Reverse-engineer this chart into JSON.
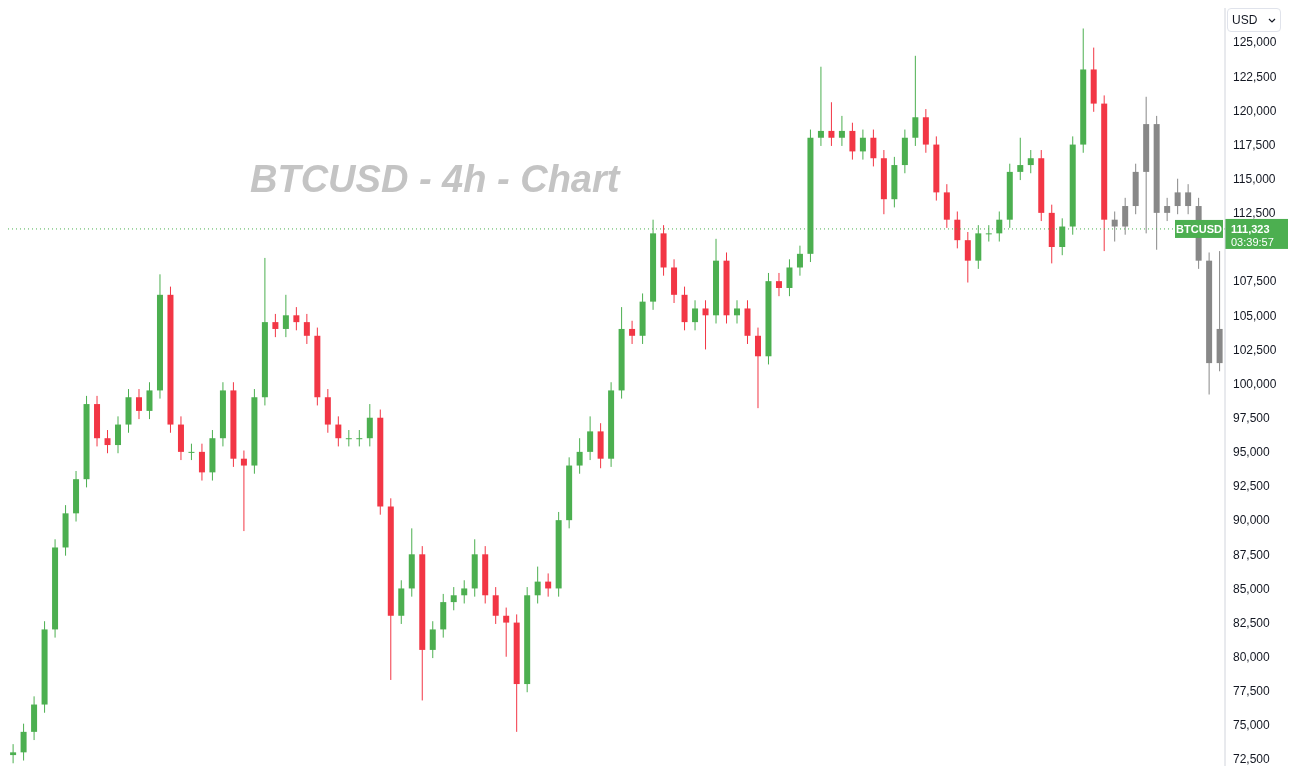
{
  "chart_data": {
    "type": "candlestick",
    "title": "BTCUSD - 4h - Chart",
    "ylabel": "USD",
    "categories": [
      null,
      null,
      null,
      null,
      null,
      null,
      null,
      null,
      null,
      null,
      null,
      null,
      null,
      null,
      null,
      null,
      null,
      null,
      null,
      null,
      null,
      null,
      null,
      null,
      null,
      null,
      null,
      null,
      null,
      null,
      null,
      null,
      null,
      null,
      null,
      null,
      null,
      null,
      null,
      null,
      null,
      null,
      null,
      null,
      null,
      null,
      null,
      null,
      null,
      null,
      null,
      null,
      null,
      null,
      null,
      null,
      null,
      null,
      null,
      null,
      null,
      null,
      null,
      null,
      null,
      null,
      null,
      null,
      null,
      null,
      null,
      null,
      null,
      null,
      null,
      null,
      null,
      null,
      null,
      null,
      null,
      null,
      null,
      null,
      null,
      null,
      null,
      null,
      null,
      null,
      null,
      null,
      null,
      null,
      null,
      null,
      null,
      null,
      null,
      null,
      null,
      null,
      null,
      null,
      null,
      null,
      null,
      null,
      null,
      null,
      null,
      null,
      null,
      null,
      null,
      null
    ],
    "ohlc": [
      [
        72800,
        73600,
        72200,
        73000
      ],
      [
        73000,
        75100,
        72400,
        74500
      ],
      [
        74500,
        77100,
        73900,
        76500
      ],
      [
        76500,
        82600,
        75900,
        82000
      ],
      [
        82000,
        88600,
        81400,
        88000
      ],
      [
        88000,
        91100,
        87400,
        90500
      ],
      [
        90500,
        93600,
        89900,
        93000
      ],
      [
        93000,
        99100,
        92400,
        98500
      ],
      [
        98500,
        99100,
        95400,
        96000
      ],
      [
        96000,
        96600,
        94900,
        95500
      ],
      [
        95500,
        97600,
        94900,
        97000
      ],
      [
        97000,
        99600,
        96400,
        99000
      ],
      [
        99000,
        99600,
        97400,
        98000
      ],
      [
        98000,
        100100,
        97400,
        99500
      ],
      [
        99500,
        108000,
        98900,
        106500
      ],
      [
        106500,
        107100,
        96400,
        97000
      ],
      [
        97000,
        97600,
        94400,
        95000
      ],
      [
        95000,
        95600,
        94400,
        95000
      ],
      [
        95000,
        95600,
        92900,
        93500
      ],
      [
        93500,
        96600,
        92900,
        96000
      ],
      [
        96000,
        100100,
        95400,
        99500
      ],
      [
        99500,
        100100,
        93900,
        94500
      ],
      [
        94500,
        95100,
        89200,
        94000
      ],
      [
        94000,
        99600,
        93400,
        99000
      ],
      [
        99000,
        109200,
        98400,
        104500
      ],
      [
        104500,
        105100,
        103400,
        104000
      ],
      [
        104000,
        106500,
        103400,
        105000
      ],
      [
        105000,
        105600,
        103900,
        104500
      ],
      [
        104500,
        105100,
        102900,
        103500
      ],
      [
        103500,
        104100,
        98400,
        99000
      ],
      [
        99000,
        99600,
        96400,
        97000
      ],
      [
        97000,
        97600,
        95400,
        96000
      ],
      [
        96000,
        96600,
        95400,
        96000
      ],
      [
        96000,
        96600,
        95400,
        96000
      ],
      [
        96000,
        98500,
        95400,
        97500
      ],
      [
        97500,
        98100,
        90400,
        91000
      ],
      [
        91000,
        91600,
        78300,
        83000
      ],
      [
        83000,
        85600,
        82400,
        85000
      ],
      [
        85000,
        89400,
        84400,
        87500
      ],
      [
        87500,
        88100,
        76800,
        80500
      ],
      [
        80500,
        82600,
        79900,
        82000
      ],
      [
        82000,
        84600,
        81400,
        84000
      ],
      [
        84000,
        85100,
        83400,
        84500
      ],
      [
        84500,
        85600,
        83900,
        85000
      ],
      [
        85000,
        88600,
        84400,
        87500
      ],
      [
        87500,
        88100,
        83900,
        84500
      ],
      [
        84500,
        85100,
        82400,
        83000
      ],
      [
        83000,
        83600,
        80000,
        82500
      ],
      [
        82500,
        83100,
        74500,
        78000
      ],
      [
        78000,
        85100,
        77400,
        84500
      ],
      [
        84500,
        86600,
        83900,
        85500
      ],
      [
        85500,
        86100,
        84400,
        85000
      ],
      [
        85000,
        90600,
        84400,
        90000
      ],
      [
        90000,
        94600,
        89400,
        94000
      ],
      [
        94000,
        96000,
        93400,
        95000
      ],
      [
        95000,
        97600,
        94400,
        96500
      ],
      [
        96500,
        97100,
        93800,
        94500
      ],
      [
        94500,
        100100,
        93900,
        99500
      ],
      [
        99500,
        105600,
        98900,
        104000
      ],
      [
        104000,
        104600,
        102900,
        103500
      ],
      [
        103500,
        106600,
        102900,
        106000
      ],
      [
        106000,
        112000,
        105400,
        111000
      ],
      [
        111000,
        111600,
        107900,
        108500
      ],
      [
        108500,
        109100,
        105900,
        106500
      ],
      [
        106500,
        107100,
        103900,
        104500
      ],
      [
        104500,
        106100,
        103900,
        105500
      ],
      [
        105500,
        106100,
        102500,
        105000
      ],
      [
        105000,
        110600,
        104400,
        109000
      ],
      [
        109000,
        109600,
        104400,
        105000
      ],
      [
        105000,
        106100,
        104400,
        105500
      ],
      [
        105500,
        106100,
        102900,
        103500
      ],
      [
        103500,
        104100,
        98200,
        102000
      ],
      [
        102000,
        108100,
        101400,
        107500
      ],
      [
        107500,
        108100,
        106400,
        107000
      ],
      [
        107000,
        109100,
        106400,
        108500
      ],
      [
        108500,
        110100,
        107900,
        109500
      ],
      [
        109500,
        118600,
        108900,
        118000
      ],
      [
        118000,
        123200,
        117400,
        118500
      ],
      [
        118500,
        120600,
        117400,
        118000
      ],
      [
        118000,
        119600,
        117400,
        118500
      ],
      [
        118500,
        119100,
        116400,
        117000
      ],
      [
        117000,
        118600,
        116400,
        118000
      ],
      [
        118000,
        118600,
        115900,
        116500
      ],
      [
        116500,
        117100,
        112400,
        113500
      ],
      [
        113500,
        116600,
        112900,
        116000
      ],
      [
        116000,
        118600,
        115400,
        118000
      ],
      [
        118000,
        124000,
        117400,
        119500
      ],
      [
        119500,
        120100,
        116900,
        117500
      ],
      [
        117500,
        118100,
        113400,
        114000
      ],
      [
        114000,
        114600,
        111400,
        112000
      ],
      [
        112000,
        112600,
        109900,
        110500
      ],
      [
        110500,
        111100,
        107400,
        109000
      ],
      [
        109000,
        111600,
        108400,
        111000
      ],
      [
        111000,
        111600,
        110400,
        111000
      ],
      [
        111000,
        112600,
        110400,
        112000
      ],
      [
        112000,
        116100,
        111400,
        115500
      ],
      [
        115500,
        118000,
        114900,
        116000
      ],
      [
        116000,
        117100,
        115400,
        116500
      ],
      [
        116500,
        117100,
        111900,
        112500
      ],
      [
        112500,
        113100,
        108800,
        110000
      ],
      [
        110000,
        112100,
        109400,
        111500
      ],
      [
        111500,
        118100,
        110900,
        117500
      ],
      [
        117500,
        126000,
        116900,
        123000
      ],
      [
        123000,
        124600,
        119900,
        120500
      ],
      [
        120500,
        121100,
        109700,
        112000
      ],
      [
        112000,
        112600,
        110400,
        111500
      ],
      [
        111500,
        113600,
        110900,
        113000
      ],
      [
        113000,
        116100,
        112400,
        115500
      ],
      [
        115500,
        121000,
        111000,
        119000
      ],
      [
        119000,
        119600,
        109800,
        112500
      ],
      [
        112500,
        113600,
        111900,
        113000
      ],
      [
        113000,
        115000,
        112400,
        114000
      ],
      [
        114000,
        114600,
        112400,
        113000
      ],
      [
        113000,
        113600,
        108400,
        109000
      ],
      [
        109000,
        109600,
        99200,
        101500
      ],
      [
        101500,
        109700,
        100900,
        104000
      ]
    ],
    "colors": [
      "#4caf50",
      "#4caf50",
      "#4caf50",
      "#4caf50",
      "#4caf50",
      "#4caf50",
      "#4caf50",
      "#4caf50",
      "#f23645",
      "#f23645",
      "#4caf50",
      "#4caf50",
      "#f23645",
      "#4caf50",
      "#4caf50",
      "#f23645",
      "#f23645",
      "#4caf50",
      "#f23645",
      "#4caf50",
      "#4caf50",
      "#f23645",
      "#f23645",
      "#4caf50",
      "#4caf50",
      "#f23645",
      "#4caf50",
      "#f23645",
      "#f23645",
      "#f23645",
      "#f23645",
      "#f23645",
      "#4caf50",
      "#4caf50",
      "#4caf50",
      "#f23645",
      "#f23645",
      "#4caf50",
      "#4caf50",
      "#f23645",
      "#4caf50",
      "#4caf50",
      "#4caf50",
      "#4caf50",
      "#4caf50",
      "#f23645",
      "#f23645",
      "#f23645",
      "#f23645",
      "#4caf50",
      "#4caf50",
      "#f23645",
      "#4caf50",
      "#4caf50",
      "#4caf50",
      "#4caf50",
      "#f23645",
      "#4caf50",
      "#4caf50",
      "#f23645",
      "#4caf50",
      "#4caf50",
      "#f23645",
      "#f23645",
      "#f23645",
      "#4caf50",
      "#f23645",
      "#4caf50",
      "#f23645",
      "#4caf50",
      "#f23645",
      "#f23645",
      "#4caf50",
      "#f23645",
      "#4caf50",
      "#4caf50",
      "#4caf50",
      "#4caf50",
      "#f23645",
      "#4caf50",
      "#f23645",
      "#4caf50",
      "#f23645",
      "#f23645",
      "#4caf50",
      "#4caf50",
      "#4caf50",
      "#f23645",
      "#f23645",
      "#f23645",
      "#f23645",
      "#f23645",
      "#4caf50",
      "#4caf50",
      "#4caf50",
      "#4caf50",
      "#4caf50",
      "#4caf50",
      "#f23645",
      "#f23645",
      "#4caf50",
      "#4caf50",
      "#4caf50",
      "#f23645",
      "#f23645",
      "#888888",
      "#888888",
      "#888888",
      "#888888",
      "#888888",
      "#888888",
      "#888888",
      "#888888",
      "#888888",
      "#888888",
      "#888888"
    ],
    "ylim": [
      72000,
      127500
    ],
    "yticks": [
      {
        "value": 72500,
        "label": "72,500"
      },
      {
        "value": 75000,
        "label": "75,000"
      },
      {
        "value": 77500,
        "label": "77,500"
      },
      {
        "value": 80000,
        "label": "80,000"
      },
      {
        "value": 82500,
        "label": "82,500"
      },
      {
        "value": 85000,
        "label": "85,000"
      },
      {
        "value": 87500,
        "label": "87,500"
      },
      {
        "value": 90000,
        "label": "90,000"
      },
      {
        "value": 92500,
        "label": "92,500"
      },
      {
        "value": 95000,
        "label": "95,000"
      },
      {
        "value": 97500,
        "label": "97,500"
      },
      {
        "value": 100000,
        "label": "100,000"
      },
      {
        "value": 102500,
        "label": "102,500"
      },
      {
        "value": 105000,
        "label": "105,000"
      },
      {
        "value": 107500,
        "label": "107,500"
      },
      {
        "value": 112500,
        "label": "112,500"
      },
      {
        "value": 115000,
        "label": "115,000"
      },
      {
        "value": 117500,
        "label": "117,500"
      },
      {
        "value": 120000,
        "label": "120,000"
      },
      {
        "value": 122500,
        "label": "122,500"
      },
      {
        "value": 125000,
        "label": "125,000"
      }
    ],
    "tick_labels": "y",
    "grid": false,
    "ref_lines": [
      {
        "axis": "y",
        "value": 111323,
        "label": "BTCUSD",
        "color": "#4caf50",
        "line_style": "dotted"
      }
    ],
    "annotations": [
      "111,323",
      "03:39:57"
    ]
  }
}
